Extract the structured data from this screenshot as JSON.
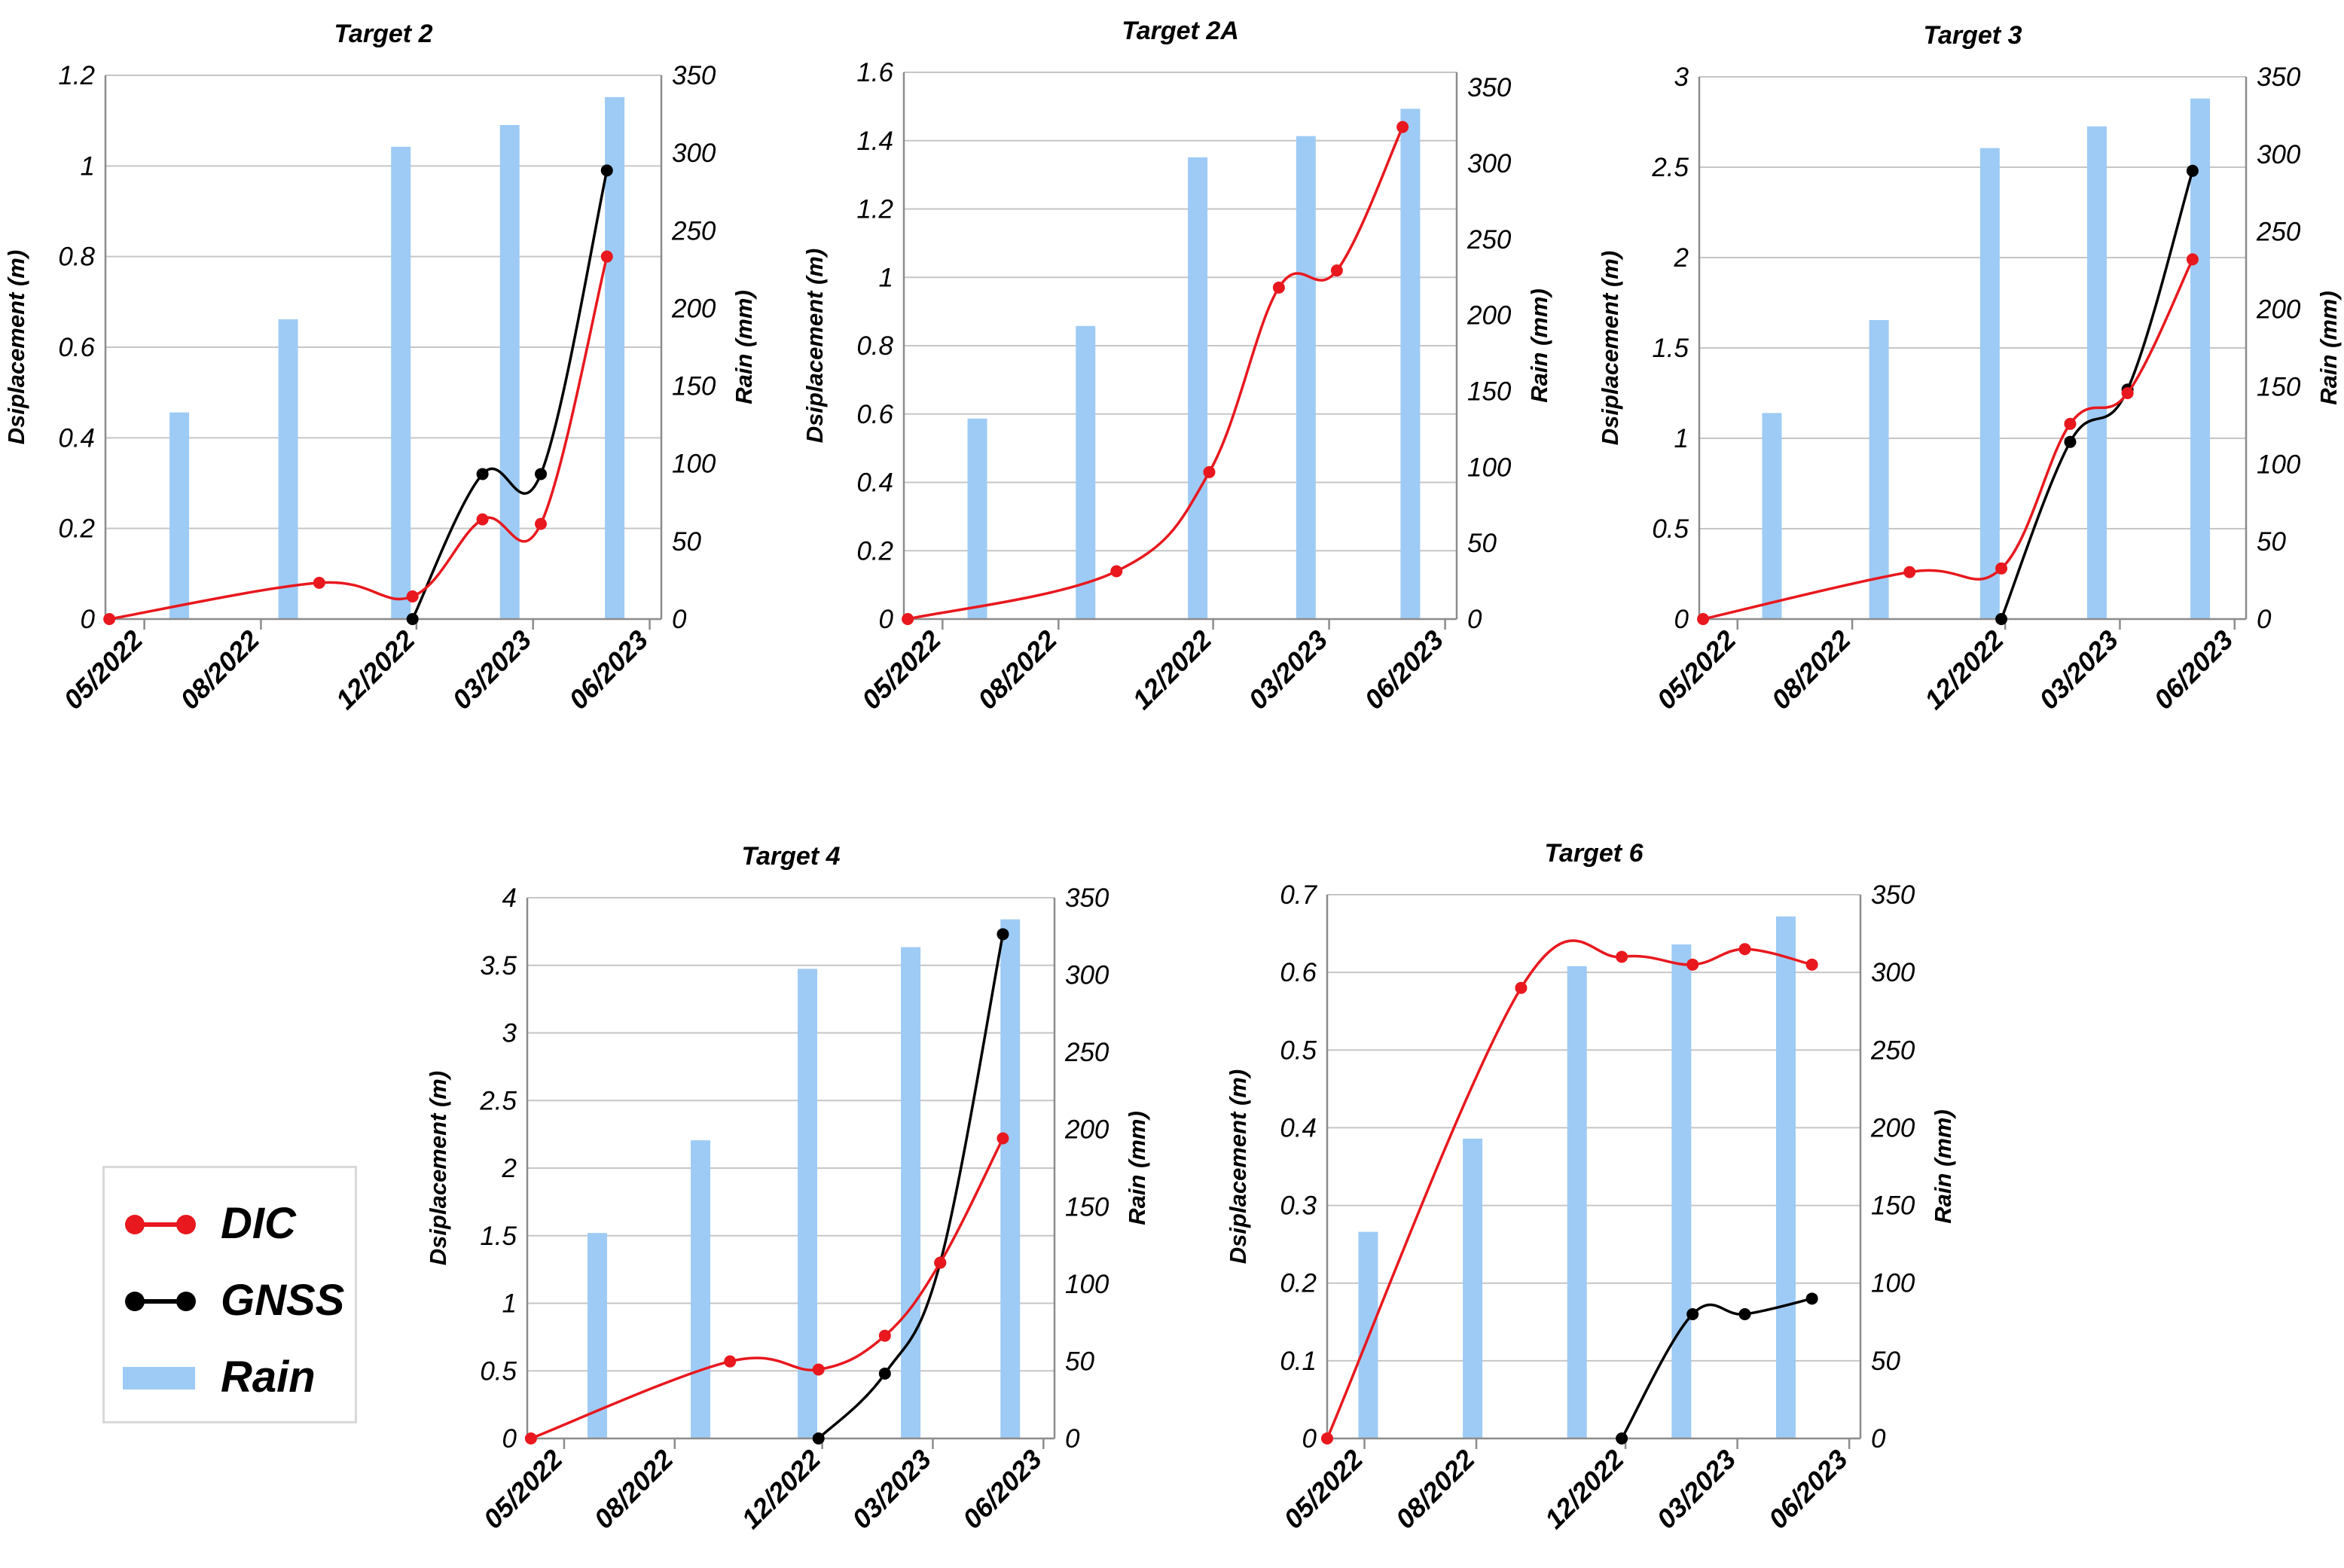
{
  "colors": {
    "dic": "#e8181e",
    "gnss": "#000000",
    "rain": "#9ecbf5",
    "grid": "#c6c6c6",
    "axis": "#8c8c8c"
  },
  "legend": {
    "dic": "DIC",
    "gnss": "GNSS",
    "rain": "Rain"
  },
  "chart_data": [
    {
      "type": "bar+line",
      "title": "Target 2",
      "ylabel": "Dsiplacement (m)",
      "y2label": "Rain (mm)",
      "xticks": [
        "05/2022",
        "08/2022",
        "12/2022",
        "03/2023",
        "06/2023"
      ],
      "xtick_times": [
        4,
        7,
        11,
        14,
        17
      ],
      "xlim": [
        3,
        17.3
      ],
      "ylim": [
        0,
        1.2
      ],
      "yticks": [
        "0",
        "0.2",
        "0.4",
        "0.6",
        "0.8",
        "1",
        "1.2"
      ],
      "y2lim": [
        0,
        350
      ],
      "y2ticks": [
        "0",
        "50",
        "100",
        "150",
        "200",
        "250",
        "300",
        "350"
      ],
      "rain": {
        "x": [
          4.9,
          7.7,
          10.6,
          13.4,
          16.1
        ],
        "values": [
          133,
          193,
          304,
          318,
          336
        ]
      },
      "dic": {
        "x": [
          3.1,
          8.5,
          10.9,
          12.7,
          14.2,
          15.9
        ],
        "values": [
          0.0,
          0.08,
          0.05,
          0.22,
          0.21,
          0.8
        ]
      },
      "gnss": {
        "x": [
          10.9,
          12.7,
          14.2,
          15.9
        ],
        "values": [
          0.0,
          0.32,
          0.32,
          0.99
        ]
      }
    },
    {
      "type": "bar+line",
      "title": "Target 2A",
      "ylabel": "Dsiplacement (m)",
      "y2label": "Rain (mm)",
      "xticks": [
        "05/2022",
        "08/2022",
        "12/2022",
        "03/2023",
        "06/2023"
      ],
      "xtick_times": [
        4,
        7,
        11,
        14,
        17
      ],
      "xlim": [
        3,
        17.3
      ],
      "ylim": [
        0,
        1.6
      ],
      "yticks": [
        "0",
        "0.2",
        "0.4",
        "0.6",
        "0.8",
        "1",
        "1.2",
        "1.4",
        "1.6"
      ],
      "y2lim": [
        0,
        360
      ],
      "y2ticks": [
        "0",
        "50",
        "100",
        "150",
        "200",
        "250",
        "300",
        "350"
      ],
      "rain": {
        "x": [
          4.9,
          7.7,
          10.6,
          13.4,
          16.1
        ],
        "values": [
          132,
          193,
          304,
          318,
          336
        ]
      },
      "dic": {
        "x": [
          3.1,
          8.5,
          10.9,
          12.7,
          14.2,
          15.9
        ],
        "values": [
          0.0,
          0.14,
          0.43,
          0.97,
          1.02,
          1.44
        ]
      },
      "gnss": {
        "x": [],
        "values": []
      }
    },
    {
      "type": "bar+line",
      "title": "Target 3",
      "ylabel": "Dsiplacement (m)",
      "y2label": "Rain (mm)",
      "xticks": [
        "05/2022",
        "08/2022",
        "12/2022",
        "03/2023",
        "06/2023"
      ],
      "xtick_times": [
        4,
        7,
        11,
        14,
        17
      ],
      "xlim": [
        3,
        17.3
      ],
      "ylim": [
        0,
        3
      ],
      "yticks": [
        "0",
        "0.5",
        "1",
        "1.5",
        "2",
        "2.5",
        "3"
      ],
      "y2lim": [
        0,
        350
      ],
      "y2ticks": [
        "0",
        "50",
        "100",
        "150",
        "200",
        "250",
        "300",
        "350"
      ],
      "rain": {
        "x": [
          4.9,
          7.7,
          10.6,
          13.4,
          16.1
        ],
        "values": [
          133,
          193,
          304,
          318,
          336
        ]
      },
      "dic": {
        "x": [
          3.1,
          8.5,
          10.9,
          12.7,
          14.2,
          15.9
        ],
        "values": [
          0.0,
          0.26,
          0.28,
          1.08,
          1.25,
          1.99
        ]
      },
      "gnss": {
        "x": [
          10.9,
          12.7,
          14.2,
          15.9
        ],
        "values": [
          0.0,
          0.98,
          1.27,
          2.48
        ]
      }
    },
    {
      "type": "bar+line",
      "title": "Target 4",
      "ylabel": "Dsiplacement (m)",
      "y2label": "Rain (mm)",
      "xticks": [
        "05/2022",
        "08/2022",
        "12/2022",
        "03/2023",
        "06/2023"
      ],
      "xtick_times": [
        4,
        7,
        11,
        14,
        17
      ],
      "xlim": [
        3,
        17.3
      ],
      "ylim": [
        0,
        4
      ],
      "yticks": [
        "0",
        "0.5",
        "1",
        "1.5",
        "2",
        "2.5",
        "3",
        "3.5",
        "4"
      ],
      "y2lim": [
        0,
        350
      ],
      "y2ticks": [
        "0",
        "50",
        "100",
        "150",
        "200",
        "250",
        "300",
        "350"
      ],
      "rain": {
        "x": [
          4.9,
          7.7,
          10.6,
          13.4,
          16.1
        ],
        "values": [
          133,
          193,
          304,
          318,
          336
        ]
      },
      "dic": {
        "x": [
          3.1,
          8.5,
          10.9,
          12.7,
          14.2,
          15.9
        ],
        "values": [
          0.0,
          0.57,
          0.51,
          0.76,
          1.3,
          2.22
        ]
      },
      "gnss": {
        "x": [
          10.9,
          12.7,
          14.2,
          15.9
        ],
        "values": [
          0.0,
          0.48,
          1.3,
          3.73
        ]
      }
    },
    {
      "type": "bar+line",
      "title": "Target 6",
      "ylabel": "Dsiplacement (m)",
      "y2label": "Rain (mm)",
      "xticks": [
        "05/2022",
        "08/2022",
        "12/2022",
        "03/2023",
        "06/2023"
      ],
      "xtick_times": [
        4,
        7,
        11,
        14,
        17
      ],
      "xlim": [
        3,
        17.3
      ],
      "ylim": [
        0,
        0.7
      ],
      "yticks": [
        "0",
        "0.1",
        "0.2",
        "0.3",
        "0.4",
        "0.5",
        "0.6",
        "0.7"
      ],
      "y2lim": [
        0,
        350
      ],
      "y2ticks": [
        "0",
        "50",
        "100",
        "150",
        "200",
        "250",
        "300",
        "350"
      ],
      "rain": {
        "x": [
          4.1,
          6.9,
          9.7,
          12.5,
          15.3
        ],
        "values": [
          133,
          193,
          304,
          318,
          336
        ]
      },
      "dic": {
        "x": [
          3.0,
          8.2,
          10.9,
          12.8,
          14.2,
          16.0
        ],
        "values": [
          0.0,
          0.58,
          0.62,
          0.61,
          0.63,
          0.61
        ]
      },
      "gnss": {
        "x": [
          10.9,
          12.8,
          14.2,
          16.0
        ],
        "values": [
          0.0,
          0.16,
          0.16,
          0.18
        ]
      }
    }
  ]
}
